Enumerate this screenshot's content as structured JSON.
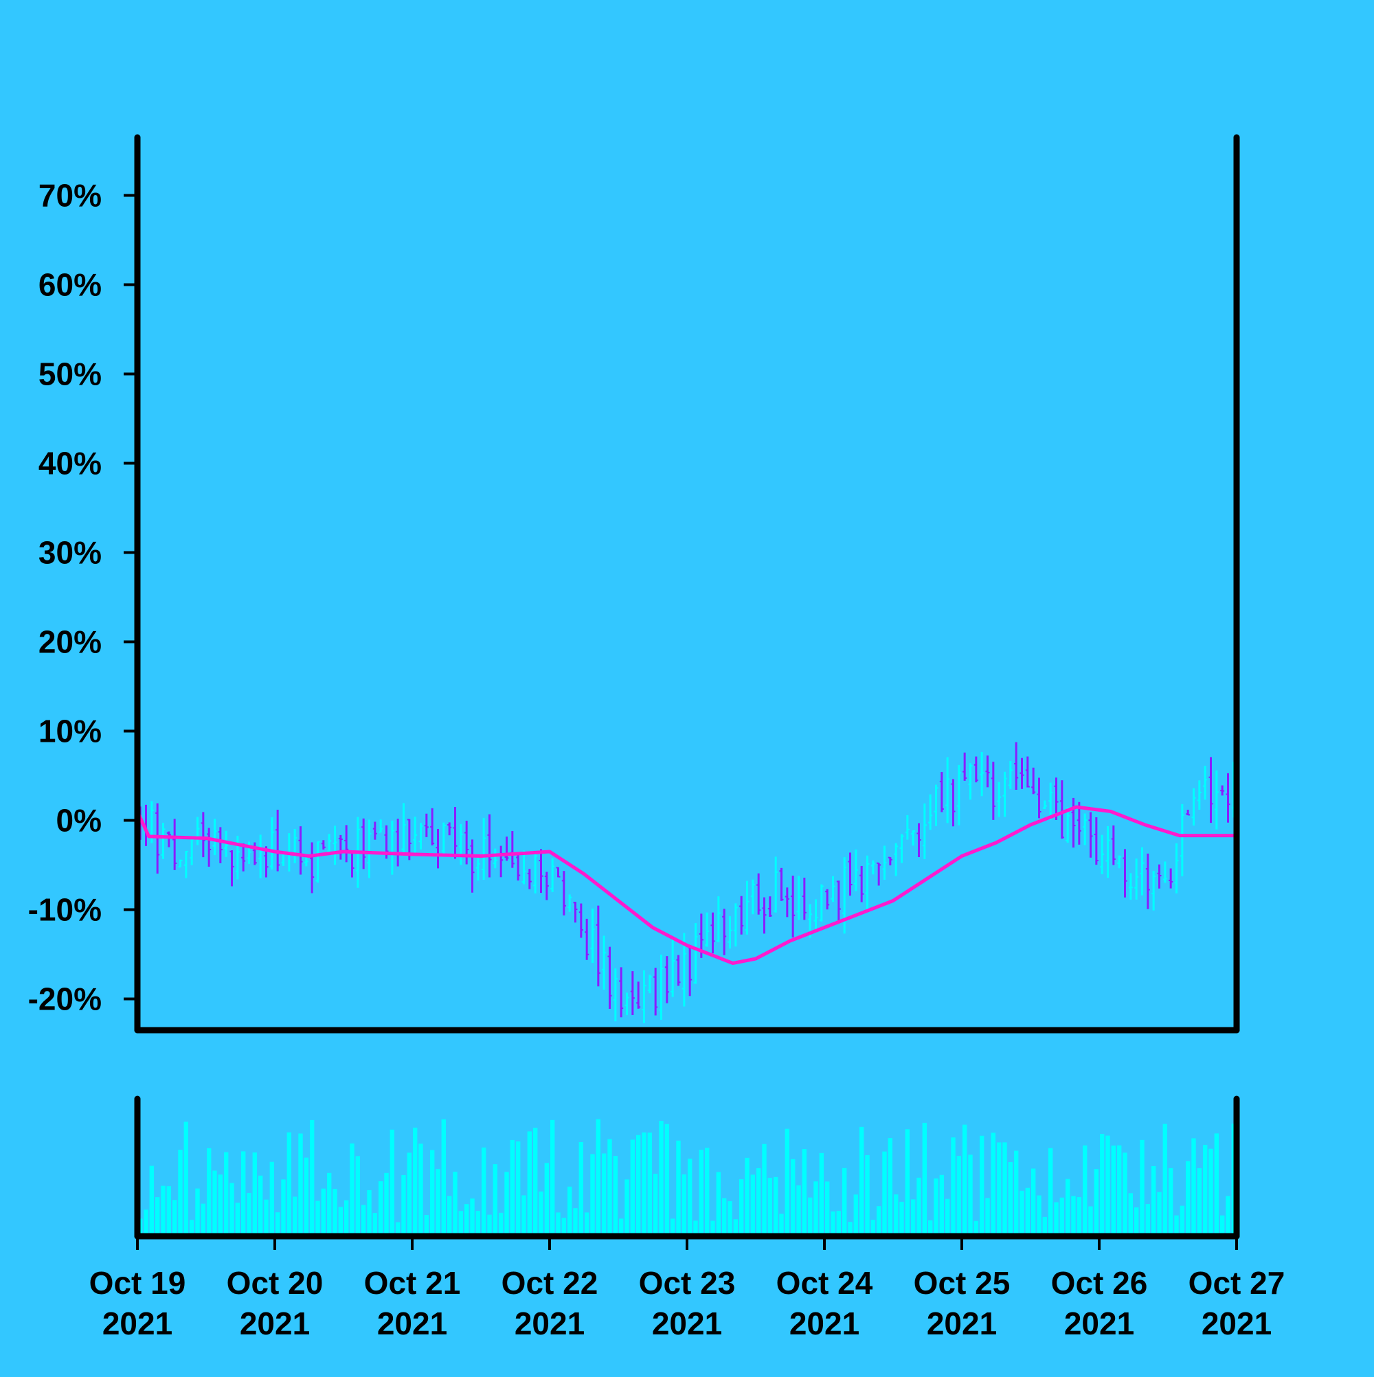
{
  "colors": {
    "background": "#33c7ff",
    "up": "#00ffff",
    "down": "#8a1cff",
    "moving_average": "#ff1acd",
    "volume": "#00ffff",
    "axis": "#000000"
  },
  "chart_data": {
    "type": "ohlc",
    "title": "",
    "xlabel": "",
    "ylabel": "",
    "price_axis": {
      "format": "percent",
      "ylim": [
        -0.235,
        0.765
      ],
      "ticks": [
        -0.2,
        -0.1,
        0.0,
        0.1,
        0.2,
        0.3,
        0.4,
        0.5,
        0.6,
        0.7
      ],
      "tick_labels": [
        "-20%",
        "-10%",
        "0%",
        "10%",
        "20%",
        "30%",
        "40%",
        "50%",
        "60%",
        "70%"
      ]
    },
    "x_axis": {
      "range": [
        "2021-10-19 00:00",
        "2021-10-27 00:00"
      ],
      "ticks": [
        "2021-10-19",
        "2021-10-20",
        "2021-10-21",
        "2021-10-22",
        "2021-10-23",
        "2021-10-24",
        "2021-10-25",
        "2021-10-26",
        "2021-10-27"
      ],
      "tick_labels": [
        [
          "Oct 19",
          "2021"
        ],
        [
          "Oct 20",
          "2021"
        ],
        [
          "Oct 21",
          "2021"
        ],
        [
          "Oct 22",
          "2021"
        ],
        [
          "Oct 23",
          "2021"
        ],
        [
          "Oct 24",
          "2021"
        ],
        [
          "Oct 25",
          "2021"
        ],
        [
          "Oct 26",
          "2021"
        ],
        [
          "Oct 27",
          "2021"
        ]
      ]
    },
    "bar_interval_hours": 1,
    "price_profile": [
      [
        "2021-10-19 00:00",
        0.0
      ],
      [
        "2021-10-19 06:00",
        -0.025
      ],
      [
        "2021-10-19 18:00",
        -0.03
      ],
      [
        "2021-10-20 06:00",
        -0.045
      ],
      [
        "2021-10-20 18:00",
        -0.02
      ],
      [
        "2021-10-21 06:00",
        -0.03
      ],
      [
        "2021-10-21 18:00",
        -0.045
      ],
      [
        "2021-10-22 00:00",
        -0.06
      ],
      [
        "2021-10-22 12:00",
        -0.19
      ],
      [
        "2021-10-22 18:00",
        -0.2
      ],
      [
        "2021-10-23 00:00",
        -0.16
      ],
      [
        "2021-10-23 12:00",
        -0.08
      ],
      [
        "2021-10-24 00:00",
        -0.09
      ],
      [
        "2021-10-24 12:00",
        -0.03
      ],
      [
        "2021-10-25 00:00",
        0.04
      ],
      [
        "2021-10-25 12:00",
        0.03
      ],
      [
        "2021-10-25 18:00",
        0.0
      ],
      [
        "2021-10-26 06:00",
        -0.06
      ],
      [
        "2021-10-26 12:00",
        -0.06
      ],
      [
        "2021-10-26 18:00",
        0.04
      ],
      [
        "2021-10-27 00:00",
        0.035
      ]
    ],
    "moving_average": [
      [
        "2021-10-19 00:00",
        0.01
      ],
      [
        "2021-10-19 02:00",
        -0.018
      ],
      [
        "2021-10-19 12:00",
        -0.02
      ],
      [
        "2021-10-20 00:00",
        -0.035
      ],
      [
        "2021-10-20 06:00",
        -0.04
      ],
      [
        "2021-10-20 12:00",
        -0.035
      ],
      [
        "2021-10-21 00:00",
        -0.038
      ],
      [
        "2021-10-21 12:00",
        -0.04
      ],
      [
        "2021-10-22 00:00",
        -0.035
      ],
      [
        "2021-10-22 06:00",
        -0.06
      ],
      [
        "2021-10-22 12:00",
        -0.09
      ],
      [
        "2021-10-22 18:00",
        -0.12
      ],
      [
        "2021-10-23 00:00",
        -0.14
      ],
      [
        "2021-10-23 08:00",
        -0.16
      ],
      [
        "2021-10-23 12:00",
        -0.155
      ],
      [
        "2021-10-23 18:00",
        -0.135
      ],
      [
        "2021-10-24 00:00",
        -0.12
      ],
      [
        "2021-10-24 12:00",
        -0.09
      ],
      [
        "2021-10-24 18:00",
        -0.065
      ],
      [
        "2021-10-25 00:00",
        -0.04
      ],
      [
        "2021-10-25 06:00",
        -0.025
      ],
      [
        "2021-10-25 12:00",
        -0.005
      ],
      [
        "2021-10-25 20:00",
        0.015
      ],
      [
        "2021-10-26 02:00",
        0.01
      ],
      [
        "2021-10-26 08:00",
        -0.005
      ],
      [
        "2021-10-26 14:00",
        -0.017
      ],
      [
        "2021-10-26 18:00",
        -0.017
      ],
      [
        "2021-10-27 00:00",
        -0.017
      ]
    ]
  }
}
